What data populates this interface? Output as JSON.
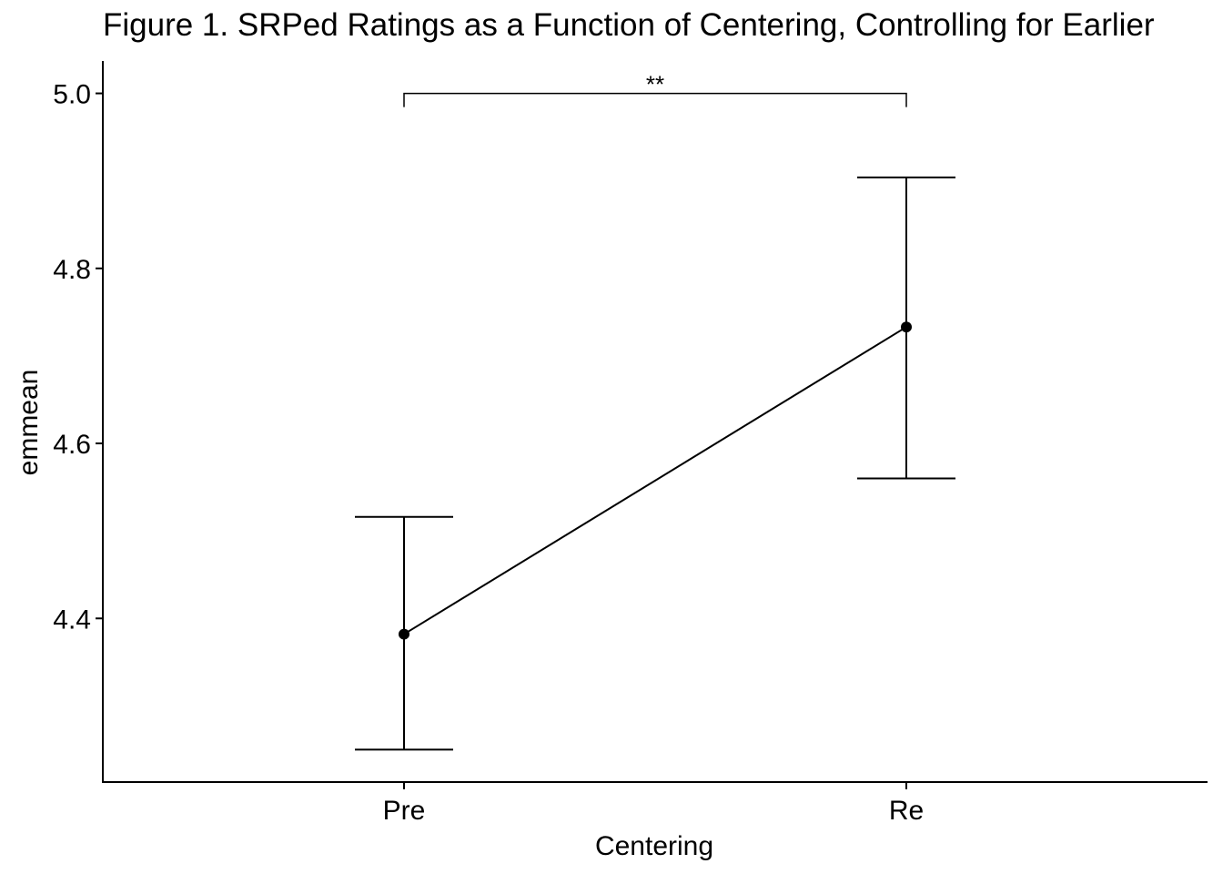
{
  "chart_data": {
    "type": "line",
    "title": "Figure 1. SRPed Ratings as a Function of Centering, Controlling for Earlier",
    "xlabel": "Centering",
    "ylabel": "emmean",
    "categories": [
      "Pre",
      "Re"
    ],
    "series": [
      {
        "values": [
          4.382,
          4.733
        ],
        "lower": [
          4.25,
          4.56
        ],
        "upper": [
          4.516,
          4.904
        ]
      }
    ],
    "yticks": [
      "4.4",
      "4.6",
      "4.8",
      "5.0"
    ],
    "ylim": [
      4.213,
      5.037
    ],
    "grid": false,
    "annotation": {
      "label": "**",
      "from": "Pre",
      "to": "Re",
      "y": 5.0
    }
  }
}
